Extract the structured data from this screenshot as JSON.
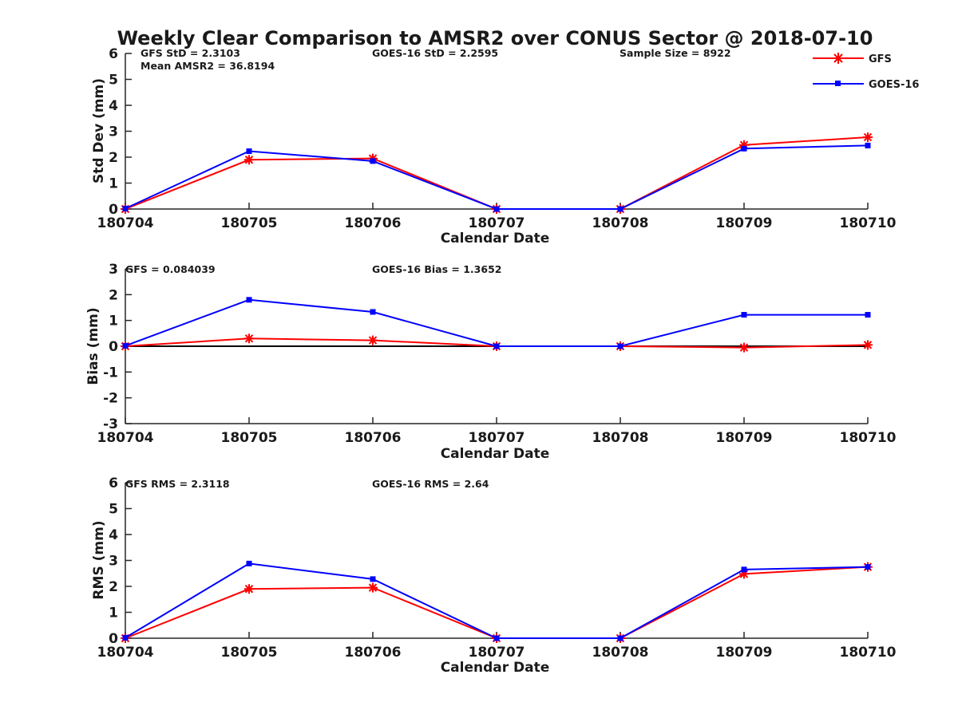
{
  "figure": {
    "title": "Weekly Clear Comparison to AMSR2 over CONUS Sector @ 2018-07-10"
  },
  "legend": {
    "placement": "top-right",
    "entries": [
      {
        "name": "GFS",
        "color": "#ff0000",
        "marker": "asterisk"
      },
      {
        "name": "GOES-16",
        "color": "#0000ff",
        "marker": "square"
      }
    ]
  },
  "chart_data": [
    {
      "type": "line",
      "xlabel": "Calendar Date",
      "ylabel": "Std Dev (mm)",
      "categories": [
        "180704",
        "180705",
        "180706",
        "180707",
        "180708",
        "180709",
        "180710"
      ],
      "yticks": [
        "0",
        "1",
        "2",
        "3",
        "4",
        "5",
        "6"
      ],
      "ylim": [
        0,
        6
      ],
      "zero_line": false,
      "series": [
        {
          "name": "GFS",
          "color": "#ff0000",
          "values": [
            0.0,
            1.9,
            1.95,
            0.0,
            0.0,
            2.47,
            2.77
          ]
        },
        {
          "name": "GOES-16",
          "color": "#0000ff",
          "values": [
            0.02,
            2.23,
            1.85,
            0.0,
            0.0,
            2.33,
            2.45
          ]
        }
      ],
      "annotations": [
        "GFS StD = 2.3103",
        "Mean AMSR2 = 36.8194",
        "GOES-16 StD = 2.2595",
        "Sample Size = 8922"
      ]
    },
    {
      "type": "line",
      "xlabel": "Calendar Date",
      "ylabel": "Bias (mm)",
      "categories": [
        "180704",
        "180705",
        "180706",
        "180707",
        "180708",
        "180709",
        "180710"
      ],
      "yticks": [
        "-3",
        "-2",
        "-1",
        "0",
        "1",
        "2",
        "3"
      ],
      "ylim": [
        -3,
        3
      ],
      "zero_line": true,
      "series": [
        {
          "name": "GFS",
          "color": "#ff0000",
          "values": [
            0.0,
            0.3,
            0.23,
            0.0,
            0.0,
            -0.05,
            0.05
          ]
        },
        {
          "name": "GOES-16",
          "color": "#0000ff",
          "values": [
            0.02,
            1.8,
            1.33,
            0.0,
            0.0,
            1.22,
            1.22
          ]
        }
      ],
      "annotations": [
        "GFS = 0.084039",
        "GOES-16 Bias  = 1.3652"
      ]
    },
    {
      "type": "line",
      "xlabel": "Calendar Date",
      "ylabel": "RMS (mm)",
      "categories": [
        "180704",
        "180705",
        "180706",
        "180707",
        "180708",
        "180709",
        "180710"
      ],
      "yticks": [
        "0",
        "1",
        "2",
        "3",
        "4",
        "5",
        "6"
      ],
      "ylim": [
        0,
        6
      ],
      "zero_line": false,
      "series": [
        {
          "name": "GFS",
          "color": "#ff0000",
          "values": [
            0.0,
            1.9,
            1.95,
            0.0,
            0.0,
            2.48,
            2.75
          ]
        },
        {
          "name": "GOES-16",
          "color": "#0000ff",
          "values": [
            0.02,
            2.88,
            2.28,
            0.0,
            0.0,
            2.65,
            2.75
          ]
        }
      ],
      "annotations": [
        "GFS RMS = 2.3118",
        "GOES-16 RMS = 2.64"
      ]
    }
  ]
}
